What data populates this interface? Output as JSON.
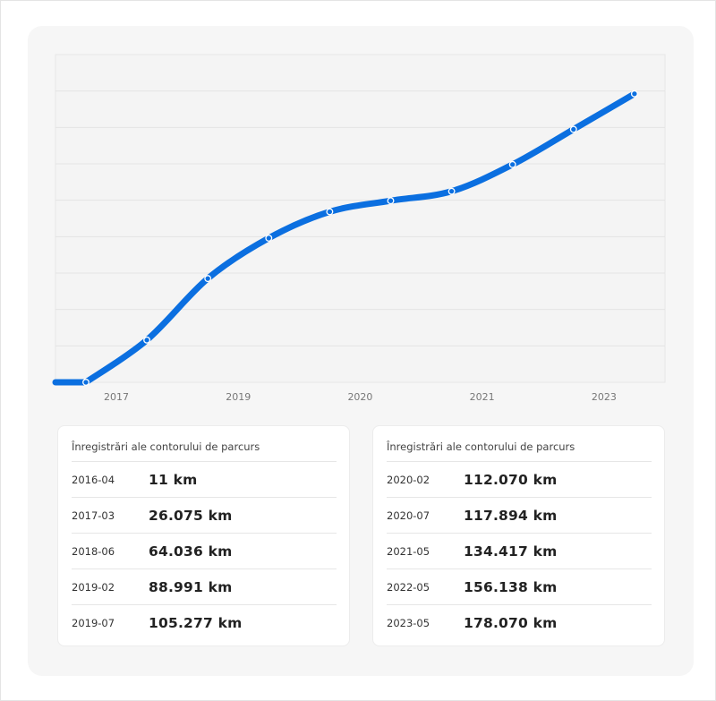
{
  "chart_data": {
    "type": "line",
    "x": [
      "2016-04",
      "2017-03",
      "2018-06",
      "2019-02",
      "2019-07",
      "2020-02",
      "2020-07",
      "2021-05",
      "2022-05",
      "2023-05"
    ],
    "values": [
      11,
      26075,
      64036,
      88991,
      105277,
      112070,
      117894,
      134417,
      156138,
      178070
    ],
    "unit": "km",
    "xticks": [
      "2017",
      "2019",
      "2020",
      "2021",
      "2023"
    ],
    "grid": true,
    "line_color": "#0b6fe0"
  },
  "tables": [
    {
      "title": "Înregistrări ale contorului de parcurs",
      "rows": [
        {
          "date": "2016-04",
          "value": "11 km"
        },
        {
          "date": "2017-03",
          "value": "26.075 km"
        },
        {
          "date": "2018-06",
          "value": "64.036 km"
        },
        {
          "date": "2019-02",
          "value": "88.991 km"
        },
        {
          "date": "2019-07",
          "value": "105.277 km"
        }
      ]
    },
    {
      "title": "Înregistrări ale contorului de parcurs",
      "rows": [
        {
          "date": "2020-02",
          "value": "112.070 km"
        },
        {
          "date": "2020-07",
          "value": "117.894 km"
        },
        {
          "date": "2021-05",
          "value": "134.417 km"
        },
        {
          "date": "2022-05",
          "value": "156.138 km"
        },
        {
          "date": "2023-05",
          "value": "178.070 km"
        }
      ]
    }
  ]
}
